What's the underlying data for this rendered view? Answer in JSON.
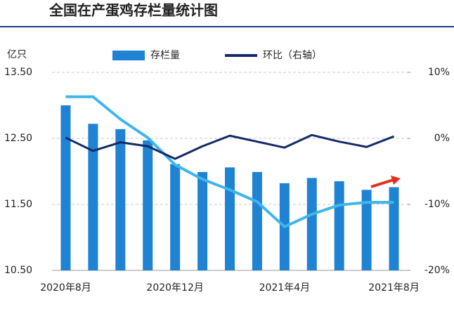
{
  "chart_data": {
    "type": "bar",
    "title": "全国在产蛋鸡存栏量统计图",
    "y_label": "亿只",
    "categories": [
      "2020年8月",
      null,
      null,
      null,
      "2020年12月",
      null,
      null,
      null,
      "2021年4月",
      null,
      null,
      null,
      "2021年8月"
    ],
    "series": [
      {
        "name": "存栏量",
        "type": "bar",
        "color": "#1f82d2",
        "values": [
          13.0,
          12.72,
          12.64,
          12.47,
          12.11,
          11.99,
          12.06,
          11.99,
          11.82,
          11.9,
          11.85,
          11.72,
          11.76
        ]
      },
      {
        "type": "line",
        "color": "#3fb6ea",
        "values": [
          13.13,
          13.13,
          12.79,
          12.51,
          12.1,
          11.88,
          11.72,
          11.54,
          11.16,
          11.35,
          11.49,
          11.53,
          11.53
        ]
      },
      {
        "name": "环比（右轴）",
        "type": "line",
        "axis": "y2",
        "color": "#132a6b",
        "values": [
          0.1,
          -1.9,
          -0.6,
          -1.2,
          -3.1,
          -1.2,
          0.4,
          -0.5,
          -1.4,
          0.5,
          -0.5,
          -1.3,
          0.3
        ]
      }
    ],
    "ylim": [
      10.5,
      13.5
    ],
    "yticks": [
      {
        "value": 10.5,
        "label": "10.50"
      },
      {
        "value": 11.5,
        "label": "11.50"
      },
      {
        "value": 12.5,
        "label": "12.50"
      },
      {
        "value": 13.5,
        "label": "13.50"
      }
    ],
    "y2lim": [
      -20,
      10
    ],
    "y2ticks": [
      {
        "value": -20,
        "label": "-20%"
      },
      {
        "value": -10,
        "label": "-10%"
      },
      {
        "value": 0,
        "label": "0%"
      },
      {
        "value": 10,
        "label": "10%"
      }
    ],
    "grid": true
  }
}
